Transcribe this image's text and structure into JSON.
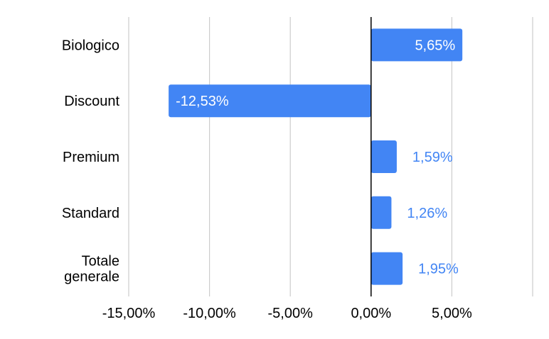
{
  "chart_data": {
    "type": "bar",
    "orientation": "horizontal",
    "categories": [
      "Biologico",
      "Discount",
      "Premium",
      "Standard",
      "Totale generale"
    ],
    "category_lines": [
      [
        "Biologico"
      ],
      [
        "Discount"
      ],
      [
        "Premium"
      ],
      [
        "Standard"
      ],
      [
        "Totale",
        "generale"
      ]
    ],
    "values": [
      5.65,
      -12.53,
      1.59,
      1.26,
      1.95
    ],
    "data_labels": [
      "5,65%",
      "-12,53%",
      "1,59%",
      "1,26%",
      "1,95%"
    ],
    "x_ticks": [
      -15,
      -10,
      -5,
      0,
      5
    ],
    "x_tick_labels": [
      "-15,00%",
      "-10,00%",
      "-5,00%",
      "0,00%",
      "5,00%"
    ],
    "xlim": [
      -15,
      10
    ],
    "grid": true,
    "colors": {
      "bar": "#4285f4",
      "label_inside": "#ffffff",
      "label_outside": "#4285f4",
      "grid": "#cccccc",
      "zero_line": "#000000",
      "text": "#000000"
    }
  }
}
